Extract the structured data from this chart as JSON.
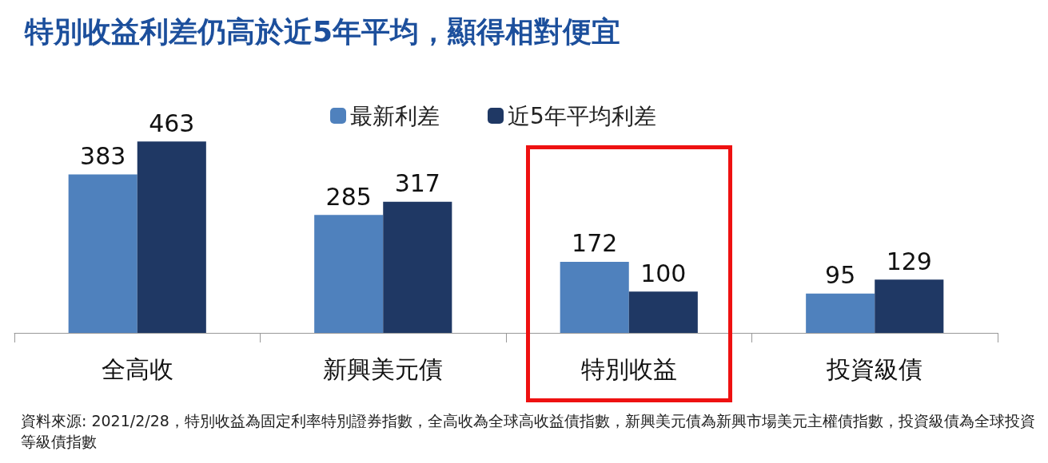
{
  "chart_data": {
    "type": "bar",
    "title": "特別收益利差仍高於近5年平均，顯得相對便宜",
    "categories": [
      "全高收",
      "新興美元債",
      "特別收益",
      "投資級債"
    ],
    "series": [
      {
        "name": "最新利差",
        "color": "#4f81bd",
        "values": [
          383,
          285,
          172,
          95
        ]
      },
      {
        "name": "近5年平均利差",
        "color": "#1f3864",
        "values": [
          463,
          317,
          100,
          129
        ]
      }
    ],
    "data_labels": true,
    "legend": "top",
    "grid": false,
    "annotations": [
      "資料來源: 2021/2/28，特別收益為固定利率特別證券指數，全高收為全球高收益債指數，新興美元債為新興市場美元主權債指數，投資級債為全球投資等級債指數"
    ]
  }
}
